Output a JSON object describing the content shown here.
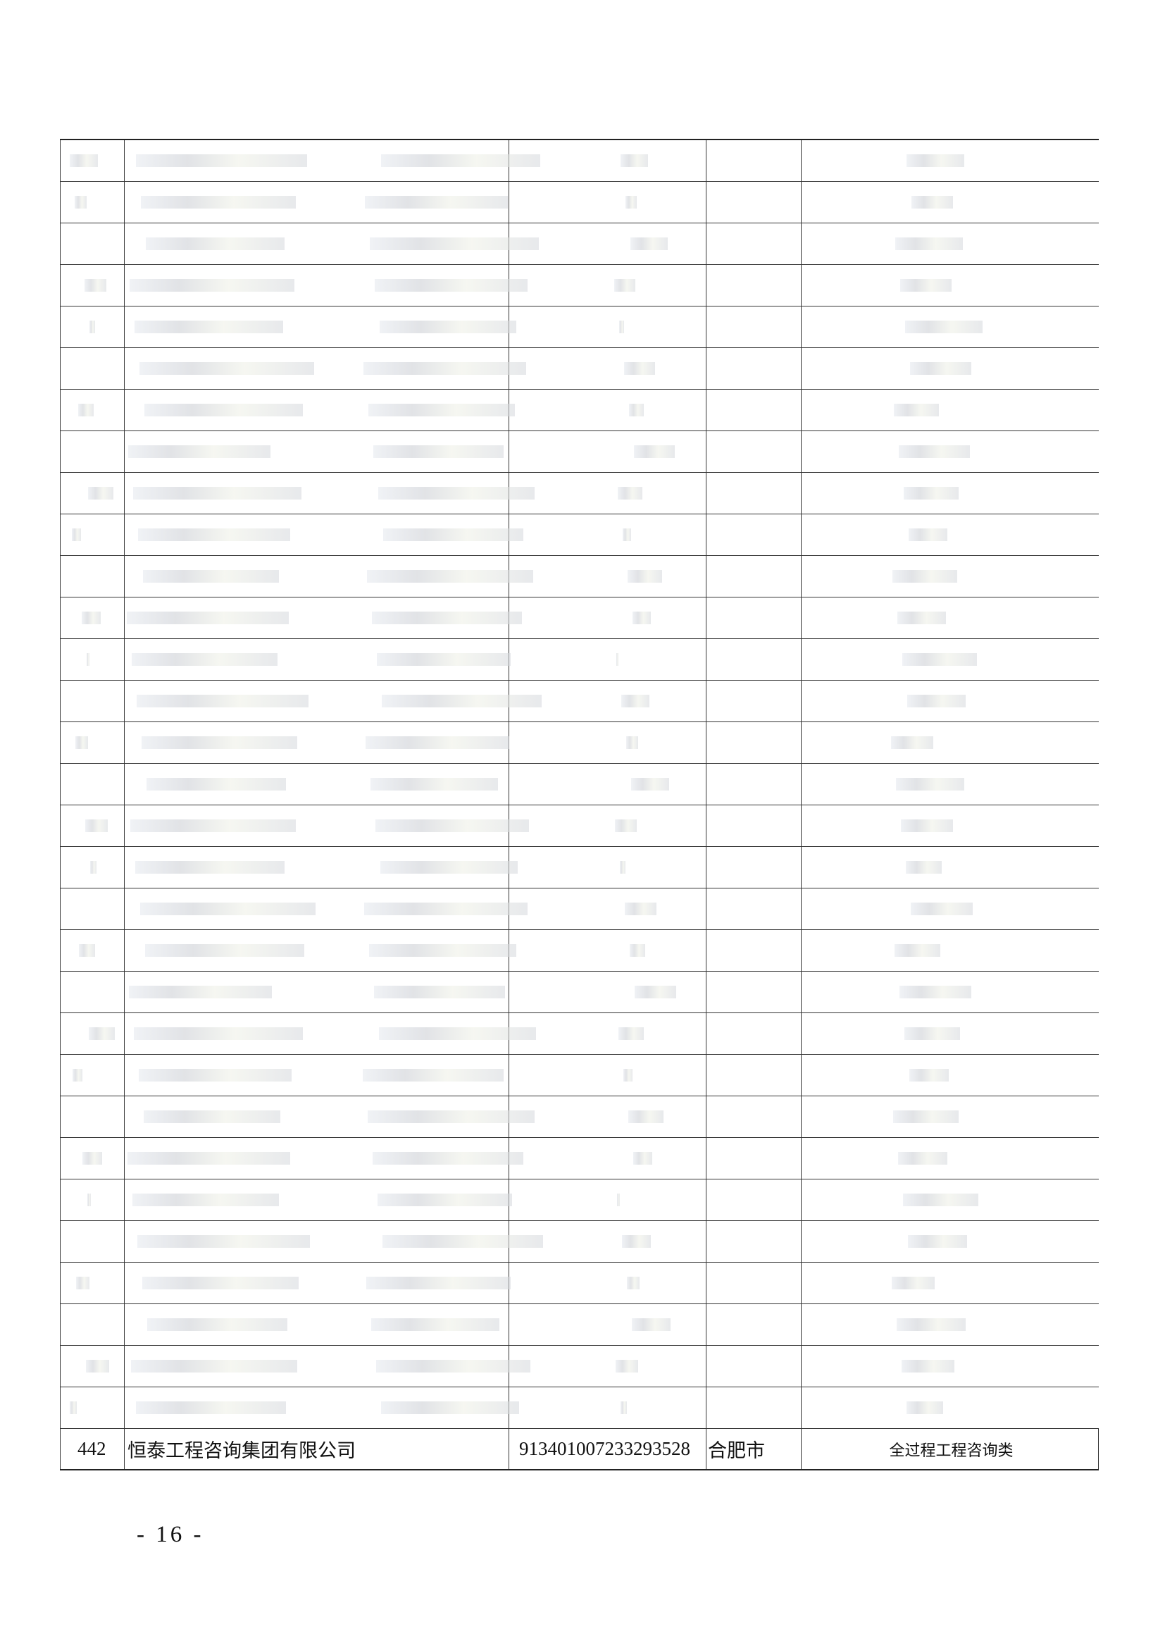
{
  "table": {
    "rows": [
      [
        "442",
        "恒泰工程咨询集团有限公司",
        "913401007233293528",
        "合肥市",
        "全过程工程咨询类"
      ]
    ]
  },
  "footer": {
    "page_number": "- 16 -"
  }
}
